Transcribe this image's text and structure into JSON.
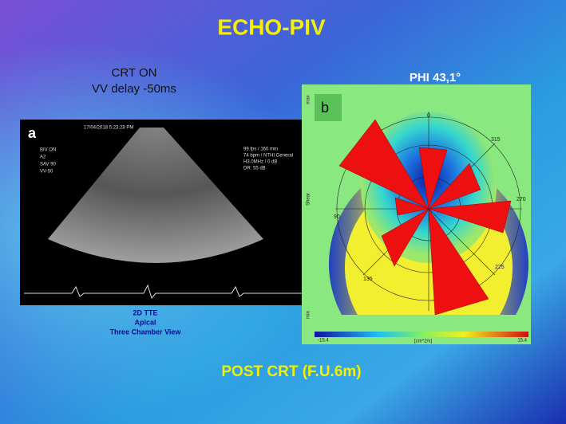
{
  "slide": {
    "title": "ECHO-PIV",
    "left": {
      "heading": [
        "CRT ON",
        "VV delay -50ms"
      ],
      "panel_label": "a",
      "echo_texts": [
        "17/04/2018 5:23:28 PM",
        "BIV ON",
        "A2",
        "SAV 90",
        "VV-50",
        "99 fps / 160 mm",
        "74 bpm / NTHI General",
        "H3.0MHz / 0 dB",
        "DR: 55 dB"
      ],
      "caption": [
        "2D TTE",
        "Apical",
        "Three Chamber View"
      ]
    },
    "right": {
      "heading": "PHI  43,1°",
      "panel_label": "b",
      "angle_labels": [
        "0",
        "315",
        "270",
        "225",
        "135",
        "90"
      ],
      "side_labels": [
        "max",
        "Shear",
        "min"
      ],
      "colorbar": {
        "min_label": "-15.4",
        "unit": "[cm^2/s]",
        "max_label": "15.4"
      }
    },
    "footer": "POST  CRT (F.U.6m)"
  }
}
